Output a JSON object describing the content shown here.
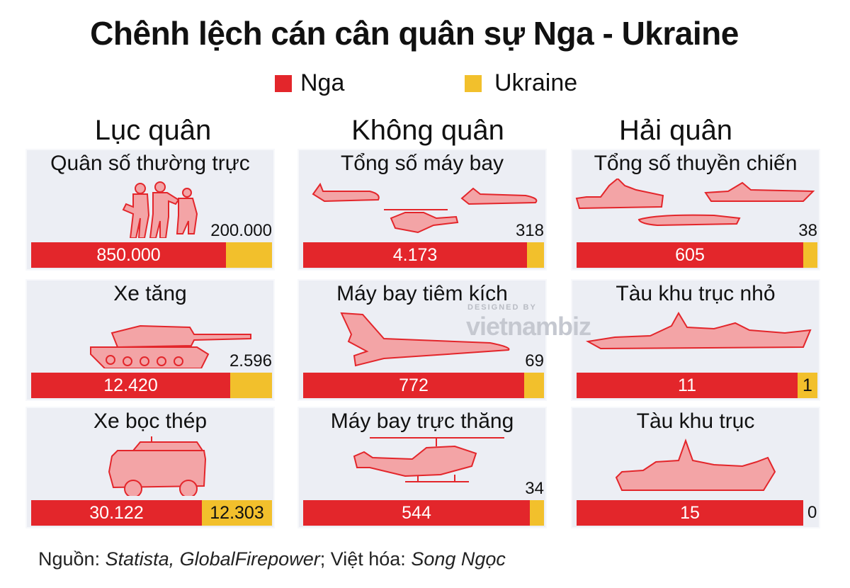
{
  "title": "Chênh lệch cán cân quân sự Nga - Ukraine",
  "legend": {
    "russia": {
      "label": "Nga",
      "color": "#e3262b"
    },
    "ukraine": {
      "label": "Ukraine",
      "color": "#f2c02c"
    }
  },
  "columns": [
    {
      "header": "Lục quân"
    },
    {
      "header": "Không quân"
    },
    {
      "header": "Hải quân"
    }
  ],
  "watermark": {
    "top": "DESIGNED BY",
    "brand": "vietnambiz"
  },
  "source": {
    "prefix": "Nguồn: ",
    "sources": "Statista, GlobalFirepower",
    "middle": "; Việt hóa: ",
    "author": "Song Ngọc"
  },
  "chart_data": {
    "type": "bar",
    "title": "Chênh lệch cán cân quân sự Nga - Ukraine",
    "series_names": [
      "Nga",
      "Ukraine"
    ],
    "panels": [
      {
        "group": "Lục quân",
        "label": "Quân số thường trực",
        "icon": "soldiers-icon",
        "russia": 850000,
        "ukraine": 200000,
        "russia_label": "850.000",
        "ukraine_label": "200.000"
      },
      {
        "group": "Lục quân",
        "label": "Xe tăng",
        "icon": "tank-icon",
        "russia": 12420,
        "ukraine": 2596,
        "russia_label": "12.420",
        "ukraine_label": "2.596"
      },
      {
        "group": "Lục quân",
        "label": "Xe bọc thép",
        "icon": "armored-vehicle-icon",
        "russia": 30122,
        "ukraine": 12303,
        "russia_label": "30.122",
        "ukraine_label": "12.303"
      },
      {
        "group": "Không quân",
        "label": "Tổng số máy bay",
        "icon": "aircraft-icon",
        "russia": 4173,
        "ukraine": 318,
        "russia_label": "4.173",
        "ukraine_label": "318"
      },
      {
        "group": "Không quân",
        "label": "Máy bay tiêm kích",
        "icon": "fighter-jet-icon",
        "russia": 772,
        "ukraine": 69,
        "russia_label": "772",
        "ukraine_label": "69"
      },
      {
        "group": "Không quân",
        "label": "Máy bay trực thăng",
        "icon": "helicopter-icon",
        "russia": 544,
        "ukraine": 34,
        "russia_label": "544",
        "ukraine_label": "34"
      },
      {
        "group": "Hải quân",
        "label": "Tổng số thuyền chiến",
        "icon": "warships-icon",
        "russia": 605,
        "ukraine": 38,
        "russia_label": "605",
        "ukraine_label": "38"
      },
      {
        "group": "Hải quân",
        "label": "Tàu khu trục nhỏ",
        "icon": "frigate-icon",
        "russia": 11,
        "ukraine": 1,
        "russia_label": "11",
        "ukraine_label": "1"
      },
      {
        "group": "Hải quân",
        "label": "Tàu khu trục",
        "icon": "destroyer-icon",
        "russia": 15,
        "ukraine": 0,
        "russia_label": "15",
        "ukraine_label": "0"
      }
    ]
  }
}
